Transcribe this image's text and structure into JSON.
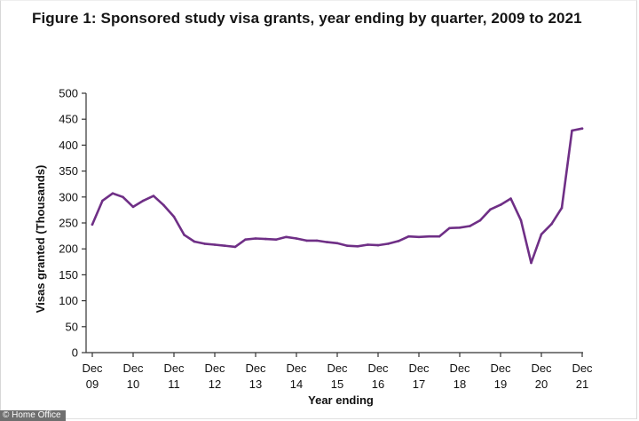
{
  "chart_data": {
    "type": "line",
    "title": "Figure 1: Sponsored study visa grants, year ending by quarter, 2009 to 2021",
    "xlabel": "Year ending",
    "ylabel": "Visas granted (Thousands)",
    "ylim": [
      0,
      500
    ],
    "yticks": [
      0,
      50,
      100,
      150,
      200,
      250,
      300,
      350,
      400,
      450,
      500
    ],
    "xticks": [
      {
        "x": "Dec 2009",
        "line1": "Dec",
        "line2": "09"
      },
      {
        "x": "Dec 2010",
        "line1": "Dec",
        "line2": "10"
      },
      {
        "x": "Dec 2011",
        "line1": "Dec",
        "line2": "11"
      },
      {
        "x": "Dec 2012",
        "line1": "Dec",
        "line2": "12"
      },
      {
        "x": "Dec 2013",
        "line1": "Dec",
        "line2": "13"
      },
      {
        "x": "Dec 2014",
        "line1": "Dec",
        "line2": "14"
      },
      {
        "x": "Dec 2015",
        "line1": "Dec",
        "line2": "15"
      },
      {
        "x": "Dec 2016",
        "line1": "Dec",
        "line2": "16"
      },
      {
        "x": "Dec 2017",
        "line1": "Dec",
        "line2": "17"
      },
      {
        "x": "Dec 2018",
        "line1": "Dec",
        "line2": "18"
      },
      {
        "x": "Dec 2019",
        "line1": "Dec",
        "line2": "19"
      },
      {
        "x": "Dec 2020",
        "line1": "Dec",
        "line2": "20"
      },
      {
        "x": "Dec 2021",
        "line1": "Dec",
        "line2": "21"
      }
    ],
    "grid": false,
    "line_color": "#6f2f86",
    "series": [
      {
        "x": [
          "Dec 2009",
          "Mar 2010",
          "Jun 2010",
          "Sep 2010",
          "Dec 2010",
          "Mar 2011",
          "Jun 2011",
          "Sep 2011",
          "Dec 2011",
          "Mar 2012",
          "Jun 2012",
          "Sep 2012",
          "Dec 2012",
          "Mar 2013",
          "Jun 2013",
          "Sep 2013",
          "Dec 2013",
          "Mar 2014",
          "Jun 2014",
          "Sep 2014",
          "Dec 2014",
          "Mar 2015",
          "Jun 2015",
          "Sep 2015",
          "Dec 2015",
          "Mar 2016",
          "Jun 2016",
          "Sep 2016",
          "Dec 2016",
          "Mar 2017",
          "Jun 2017",
          "Sep 2017",
          "Dec 2017",
          "Mar 2018",
          "Jun 2018",
          "Sep 2018",
          "Dec 2018",
          "Mar 2019",
          "Jun 2019",
          "Sep 2019",
          "Dec 2019",
          "Mar 2020",
          "Jun 2020",
          "Sep 2020",
          "Dec 2020",
          "Mar 2021",
          "Jun 2021",
          "Sep 2021",
          "Dec 2021"
        ],
        "values": [
          247,
          293,
          307,
          300,
          281,
          293,
          302,
          284,
          262,
          227,
          214,
          210,
          208,
          206,
          204,
          218,
          220,
          219,
          218,
          223,
          220,
          216,
          216,
          213,
          211,
          206,
          205,
          208,
          207,
          210,
          215,
          224,
          223,
          224,
          224,
          240,
          241,
          244,
          255,
          276,
          285,
          297,
          255,
          173,
          228,
          248,
          279,
          428,
          432
        ]
      }
    ]
  },
  "source_credit": "© Home Office"
}
